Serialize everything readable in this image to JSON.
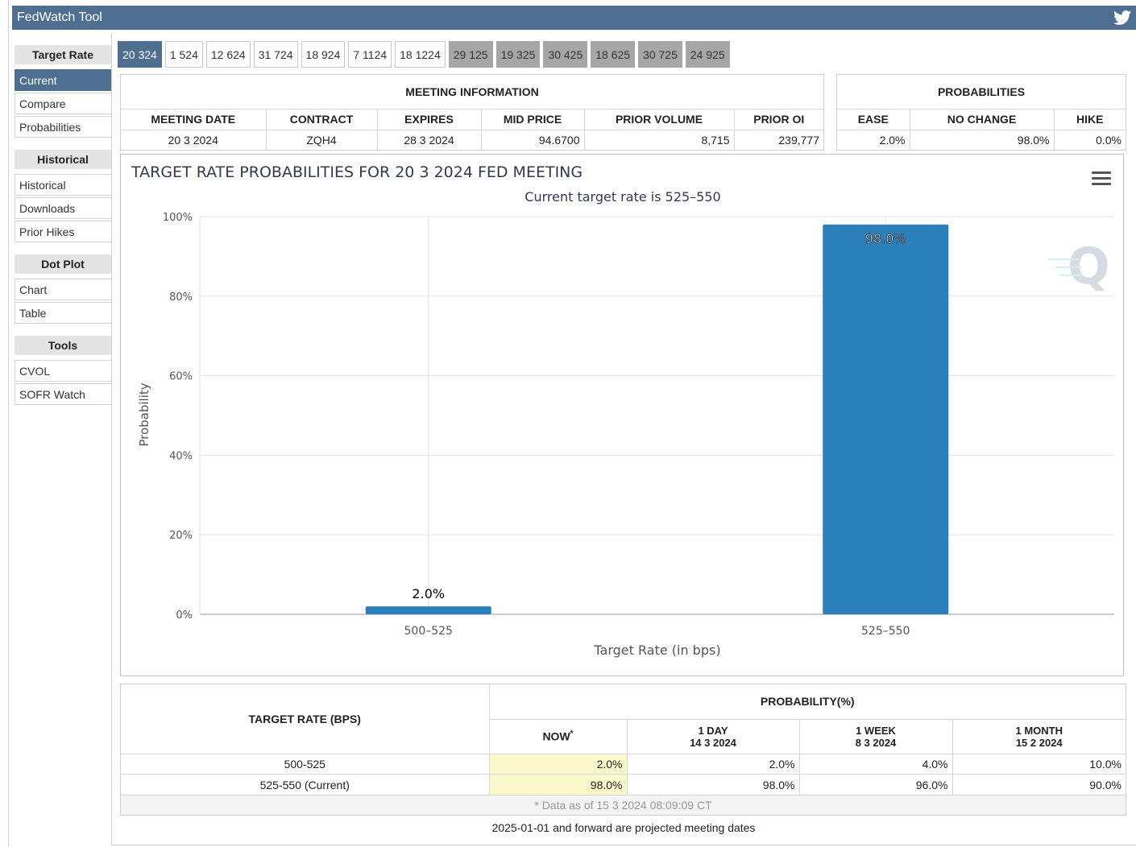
{
  "app": {
    "title": "FedWatch Tool"
  },
  "sidebar": {
    "sections": [
      {
        "heading": "Target Rate",
        "items": [
          "Current",
          "Compare",
          "Probabilities"
        ]
      },
      {
        "heading": "Historical",
        "items": [
          "Historical",
          "Downloads",
          "Prior Hikes"
        ]
      },
      {
        "heading": "Dot Plot",
        "items": [
          "Chart",
          "Table"
        ]
      },
      {
        "heading": "Tools",
        "items": [
          "CVOL",
          "SOFR Watch"
        ]
      }
    ],
    "active_item": "Current"
  },
  "meeting_tabs": [
    "20 324",
    "1 524",
    "12 624",
    "31 724",
    "18 924",
    "7 1124",
    "18 1224",
    "29 125",
    "19 325",
    "30 425",
    "18 625",
    "30 725",
    "24 925"
  ],
  "meeting_info": {
    "heading": "MEETING INFORMATION",
    "columns": [
      "MEETING DATE",
      "CONTRACT",
      "EXPIRES",
      "MID PRICE",
      "PRIOR VOLUME",
      "PRIOR OI"
    ],
    "row": [
      "20 3 2024",
      "ZQH4",
      "28 3 2024",
      "94.6700",
      "8,715",
      "239,777"
    ]
  },
  "probabilities": {
    "heading": "PROBABILITIES",
    "columns": [
      "EASE",
      "NO CHANGE",
      "HIKE"
    ],
    "row": [
      "2.0%",
      "98.0%",
      "0.0%"
    ]
  },
  "chart_data": {
    "type": "bar",
    "title": "TARGET RATE PROBABILITIES FOR 20 3 2024 FED MEETING",
    "subtitle": "Current target rate is 525–550",
    "xlabel": "Target Rate (in bps)",
    "ylabel": "Probability",
    "categories": [
      "500–525",
      "525–550"
    ],
    "values": [
      2.0,
      98.0
    ],
    "data_labels": [
      "2.0%",
      "98.0%"
    ],
    "ylim": [
      0,
      100
    ],
    "yticks": [
      "0%",
      "20%",
      "40%",
      "60%",
      "80%",
      "100%"
    ],
    "grid": true,
    "bar_color": "#2b7fbb"
  },
  "prob_table": {
    "target_heading": "TARGET RATE (BPS)",
    "prob_heading": "PROBABILITY(%)",
    "now_label": "NOW",
    "now_marker": "*",
    "day_label": "1 DAY",
    "day_date": "14 3 2024",
    "week_label": "1 WEEK",
    "week_date": "8 3 2024",
    "month_label": "1 MONTH",
    "month_date": "15 2 2024",
    "rows": [
      {
        "rate": "500-525",
        "now": "2.0%",
        "day": "2.0%",
        "week": "4.0%",
        "month": "10.0%"
      },
      {
        "rate": "525-550 (Current)",
        "now": "98.0%",
        "day": "98.0%",
        "week": "96.0%",
        "month": "90.0%"
      }
    ],
    "data_as_of": "* Data as of 15 3 2024 08:09:09 CT"
  },
  "footnote": "2025-01-01 and forward are projected meeting dates"
}
